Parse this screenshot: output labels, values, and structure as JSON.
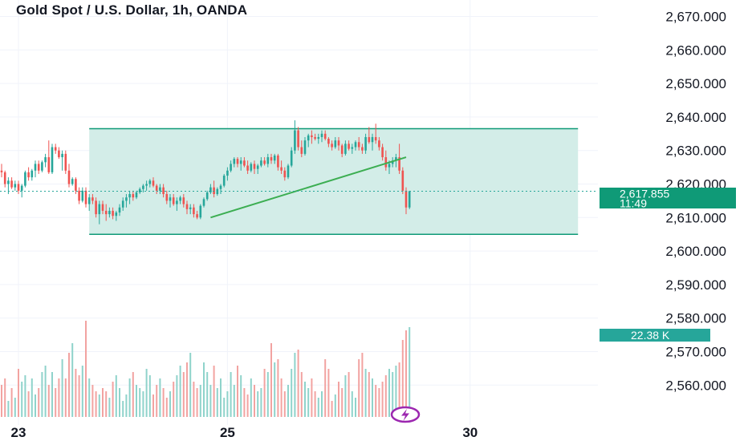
{
  "header": {
    "title": "Gold Spot / U.S. Dollar, 1h, OANDA"
  },
  "colors": {
    "up": "#26a69a",
    "down": "#ef5350",
    "volume_up": "#8fd3cb",
    "volume_down": "#f2a3a1",
    "range_fill": "#d3ede8",
    "range_line": "#0f9a77",
    "trendline": "#3cae52",
    "badge": "#0f9a77",
    "event_icon": "#9c27b0"
  },
  "badges": {
    "last_price": "2,617.855",
    "countdown": "11:49",
    "volume": "22.38 K"
  },
  "event_icon": "lightning-icon",
  "chart_data": {
    "type": "candlestick",
    "title": "Gold Spot / U.S. Dollar, 1h, OANDA",
    "ylim": [
      2555,
      2673
    ],
    "y_ticks": [
      2670,
      2660,
      2650,
      2640,
      2630,
      2620,
      2610,
      2600,
      2590,
      2580,
      2570,
      2560
    ],
    "y_tick_labels": [
      "2,670.000",
      "2,660.000",
      "2,650.000",
      "2,640.000",
      "2,630.000",
      "2,620.000",
      "2,610.000",
      "2,600.000",
      "2,590.000",
      "2,580.000",
      "2,570.000",
      "2,560.000"
    ],
    "x_tick_labels": [
      {
        "label": "23",
        "bar": 5
      },
      {
        "label": "25",
        "bar": 67
      },
      {
        "label": "30",
        "bar": 139
      }
    ],
    "last_price": 2617.855,
    "range_box": {
      "bar_start": 26,
      "bar_end": 171,
      "top": 2636.5,
      "bottom": 2605
    },
    "trendline": {
      "bar_start": 62,
      "value_start": 2610,
      "bar_end": 120,
      "value_end": 2628
    },
    "candles": [
      [
        2624,
        2626,
        2622,
        2623.5
      ],
      [
        2623.5,
        2624,
        2619,
        2620
      ],
      [
        2620,
        2622,
        2617,
        2621
      ],
      [
        2621,
        2622,
        2618.5,
        2619
      ],
      [
        2619,
        2621,
        2618,
        2620
      ],
      [
        2620,
        2621,
        2617,
        2618
      ],
      [
        2618,
        2620,
        2616,
        2619.5
      ],
      [
        2619.5,
        2624,
        2619,
        2623.5
      ],
      [
        2623.5,
        2625,
        2621,
        2622
      ],
      [
        2622,
        2624.5,
        2621,
        2624
      ],
      [
        2624,
        2627,
        2622,
        2626
      ],
      [
        2626,
        2627,
        2623,
        2624
      ],
      [
        2624,
        2627,
        2623.5,
        2626.5
      ],
      [
        2626.5,
        2629,
        2625,
        2628
      ],
      [
        2628,
        2633,
        2623,
        2623.5
      ],
      [
        2623.5,
        2632,
        2623,
        2631
      ],
      [
        2631,
        2632,
        2629,
        2630
      ],
      [
        2630,
        2631,
        2627.5,
        2628
      ],
      [
        2628,
        2630,
        2624,
        2629
      ],
      [
        2629,
        2630,
        2623,
        2624
      ],
      [
        2624,
        2626,
        2619,
        2620
      ],
      [
        2620,
        2622,
        2619.5,
        2621.5
      ],
      [
        2621.5,
        2622,
        2617,
        2618
      ],
      [
        2618,
        2619,
        2614,
        2615
      ],
      [
        2615,
        2619,
        2614.5,
        2618
      ],
      [
        2618,
        2619,
        2613,
        2614
      ],
      [
        2614,
        2617,
        2612,
        2616
      ],
      [
        2616,
        2617,
        2614,
        2615
      ],
      [
        2615,
        2616,
        2610,
        2611
      ],
      [
        2611,
        2615,
        2608,
        2614
      ],
      [
        2614,
        2615,
        2611,
        2612
      ],
      [
        2612,
        2614,
        2609,
        2611
      ],
      [
        2611,
        2613,
        2610,
        2612
      ],
      [
        2612,
        2613,
        2609.5,
        2610.5
      ],
      [
        2610.5,
        2612,
        2609,
        2611.5
      ],
      [
        2611.5,
        2614,
        2610.5,
        2613
      ],
      [
        2613,
        2616,
        2612,
        2615
      ],
      [
        2615,
        2617,
        2613,
        2616
      ],
      [
        2616,
        2618,
        2614,
        2617
      ],
      [
        2617,
        2618,
        2615,
        2616
      ],
      [
        2616,
        2618,
        2615.5,
        2617.5
      ],
      [
        2617.5,
        2619,
        2617,
        2618.5
      ],
      [
        2618.5,
        2620,
        2617.5,
        2619.5
      ],
      [
        2619.5,
        2621,
        2618,
        2620
      ],
      [
        2620,
        2621.5,
        2619,
        2621
      ],
      [
        2621,
        2622,
        2619,
        2619.5
      ],
      [
        2619.5,
        2620,
        2617,
        2618
      ],
      [
        2618,
        2620,
        2617,
        2619
      ],
      [
        2619,
        2620,
        2616,
        2617
      ],
      [
        2617,
        2618,
        2614,
        2615
      ],
      [
        2615,
        2617,
        2613,
        2616
      ],
      [
        2616,
        2617,
        2613.5,
        2614
      ],
      [
        2614,
        2616,
        2612,
        2615
      ],
      [
        2615,
        2616.5,
        2614,
        2616
      ],
      [
        2616,
        2617,
        2613,
        2614
      ],
      [
        2614,
        2615,
        2611,
        2612.5
      ],
      [
        2612.5,
        2614,
        2611,
        2613
      ],
      [
        2613,
        2614,
        2610,
        2611
      ],
      [
        2611,
        2612,
        2609.5,
        2610
      ],
      [
        2610,
        2614,
        2609.5,
        2613.5
      ],
      [
        2613.5,
        2616,
        2613,
        2615.5
      ],
      [
        2615.5,
        2618,
        2615,
        2617.5
      ],
      [
        2617.5,
        2620,
        2617,
        2619
      ],
      [
        2619,
        2621,
        2616,
        2617
      ],
      [
        2617,
        2619,
        2616.5,
        2618.5
      ],
      [
        2618.5,
        2620,
        2617,
        2619.5
      ],
      [
        2619.5,
        2623,
        2619,
        2622.5
      ],
      [
        2622.5,
        2625,
        2621,
        2624
      ],
      [
        2624,
        2627,
        2623.5,
        2626
      ],
      [
        2626,
        2628,
        2625,
        2627.5
      ],
      [
        2627.5,
        2628,
        2625,
        2626
      ],
      [
        2626,
        2628,
        2624,
        2627
      ],
      [
        2627,
        2628,
        2625,
        2625.5
      ],
      [
        2625.5,
        2627,
        2623,
        2624
      ],
      [
        2624,
        2626.5,
        2623.5,
        2626
      ],
      [
        2626,
        2627,
        2623,
        2624.5
      ],
      [
        2624.5,
        2626,
        2623,
        2625.5
      ],
      [
        2625.5,
        2628,
        2625,
        2627
      ],
      [
        2627,
        2628,
        2625.5,
        2626
      ],
      [
        2626,
        2629,
        2625,
        2628
      ],
      [
        2628,
        2629,
        2626,
        2627
      ],
      [
        2627,
        2629,
        2626,
        2628.5
      ],
      [
        2628.5,
        2629,
        2624,
        2625
      ],
      [
        2625,
        2627,
        2623,
        2624
      ],
      [
        2624,
        2625,
        2621,
        2622
      ],
      [
        2622,
        2626,
        2621.5,
        2625.5
      ],
      [
        2625.5,
        2631,
        2625,
        2630
      ],
      [
        2630,
        2639,
        2629,
        2636
      ],
      [
        2636,
        2637,
        2630,
        2631
      ],
      [
        2631,
        2633,
        2628,
        2629
      ],
      [
        2629,
        2634,
        2628.5,
        2633
      ],
      [
        2633,
        2635,
        2631,
        2634.5
      ],
      [
        2634.5,
        2636,
        2632,
        2634
      ],
      [
        2634,
        2635,
        2633,
        2633.5
      ],
      [
        2633.5,
        2635,
        2632,
        2634
      ],
      [
        2634,
        2636,
        2632.5,
        2635
      ],
      [
        2635,
        2636,
        2633,
        2633.5
      ],
      [
        2633.5,
        2634,
        2631,
        2632
      ],
      [
        2632,
        2633,
        2630,
        2631
      ],
      [
        2631,
        2634,
        2630.5,
        2633
      ],
      [
        2633,
        2634,
        2630,
        2631.5
      ],
      [
        2631.5,
        2632,
        2628,
        2629
      ],
      [
        2629,
        2633,
        2628.5,
        2632
      ],
      [
        2632,
        2633,
        2630,
        2630.5
      ],
      [
        2630.5,
        2632,
        2629,
        2631
      ],
      [
        2631,
        2633,
        2630,
        2632.5
      ],
      [
        2632.5,
        2634,
        2630,
        2631
      ],
      [
        2631,
        2632,
        2629,
        2630
      ],
      [
        2630,
        2635,
        2629,
        2634
      ],
      [
        2634,
        2637,
        2632,
        2632.5
      ],
      [
        2632.5,
        2635,
        2630,
        2634
      ],
      [
        2634,
        2638,
        2632,
        2633
      ],
      [
        2633,
        2634,
        2630,
        2631
      ],
      [
        2631,
        2632,
        2627,
        2628
      ],
      [
        2628,
        2630,
        2624,
        2625
      ],
      [
        2625,
        2627,
        2623,
        2626
      ],
      [
        2626,
        2628,
        2625,
        2627
      ],
      [
        2627,
        2629,
        2625,
        2628
      ],
      [
        2628,
        2632,
        2623,
        2624
      ],
      [
        2624,
        2625,
        2617,
        2618
      ],
      [
        2618,
        2619,
        2611,
        2613
      ],
      [
        2613,
        2618,
        2612.5,
        2617.855
      ]
    ],
    "volume": [
      20,
      24,
      10,
      18,
      12,
      30,
      22,
      26,
      16,
      24,
      14,
      18,
      28,
      32,
      20,
      28,
      18,
      24,
      36,
      24,
      40,
      46,
      30,
      26,
      32,
      60,
      24,
      20,
      16,
      14,
      18,
      16,
      12,
      22,
      26,
      18,
      10,
      14,
      24,
      28,
      20,
      18,
      16,
      30,
      26,
      14,
      20,
      24,
      18,
      12,
      16,
      22,
      26,
      32,
      28,
      34,
      40,
      22,
      18,
      20,
      34,
      28,
      20,
      32,
      18,
      24,
      12,
      16,
      28,
      20,
      32,
      26,
      18,
      14,
      24,
      20,
      16,
      18,
      30,
      28,
      46,
      34,
      36,
      24,
      16,
      20,
      30,
      40,
      42,
      28,
      22,
      18,
      24,
      16,
      12,
      16,
      36,
      30,
      10,
      14,
      22,
      18,
      26,
      28,
      16,
      12,
      36,
      40,
      30,
      28,
      24,
      20,
      18,
      22,
      26,
      30,
      28,
      32,
      34,
      48,
      54,
      56
    ]
  }
}
